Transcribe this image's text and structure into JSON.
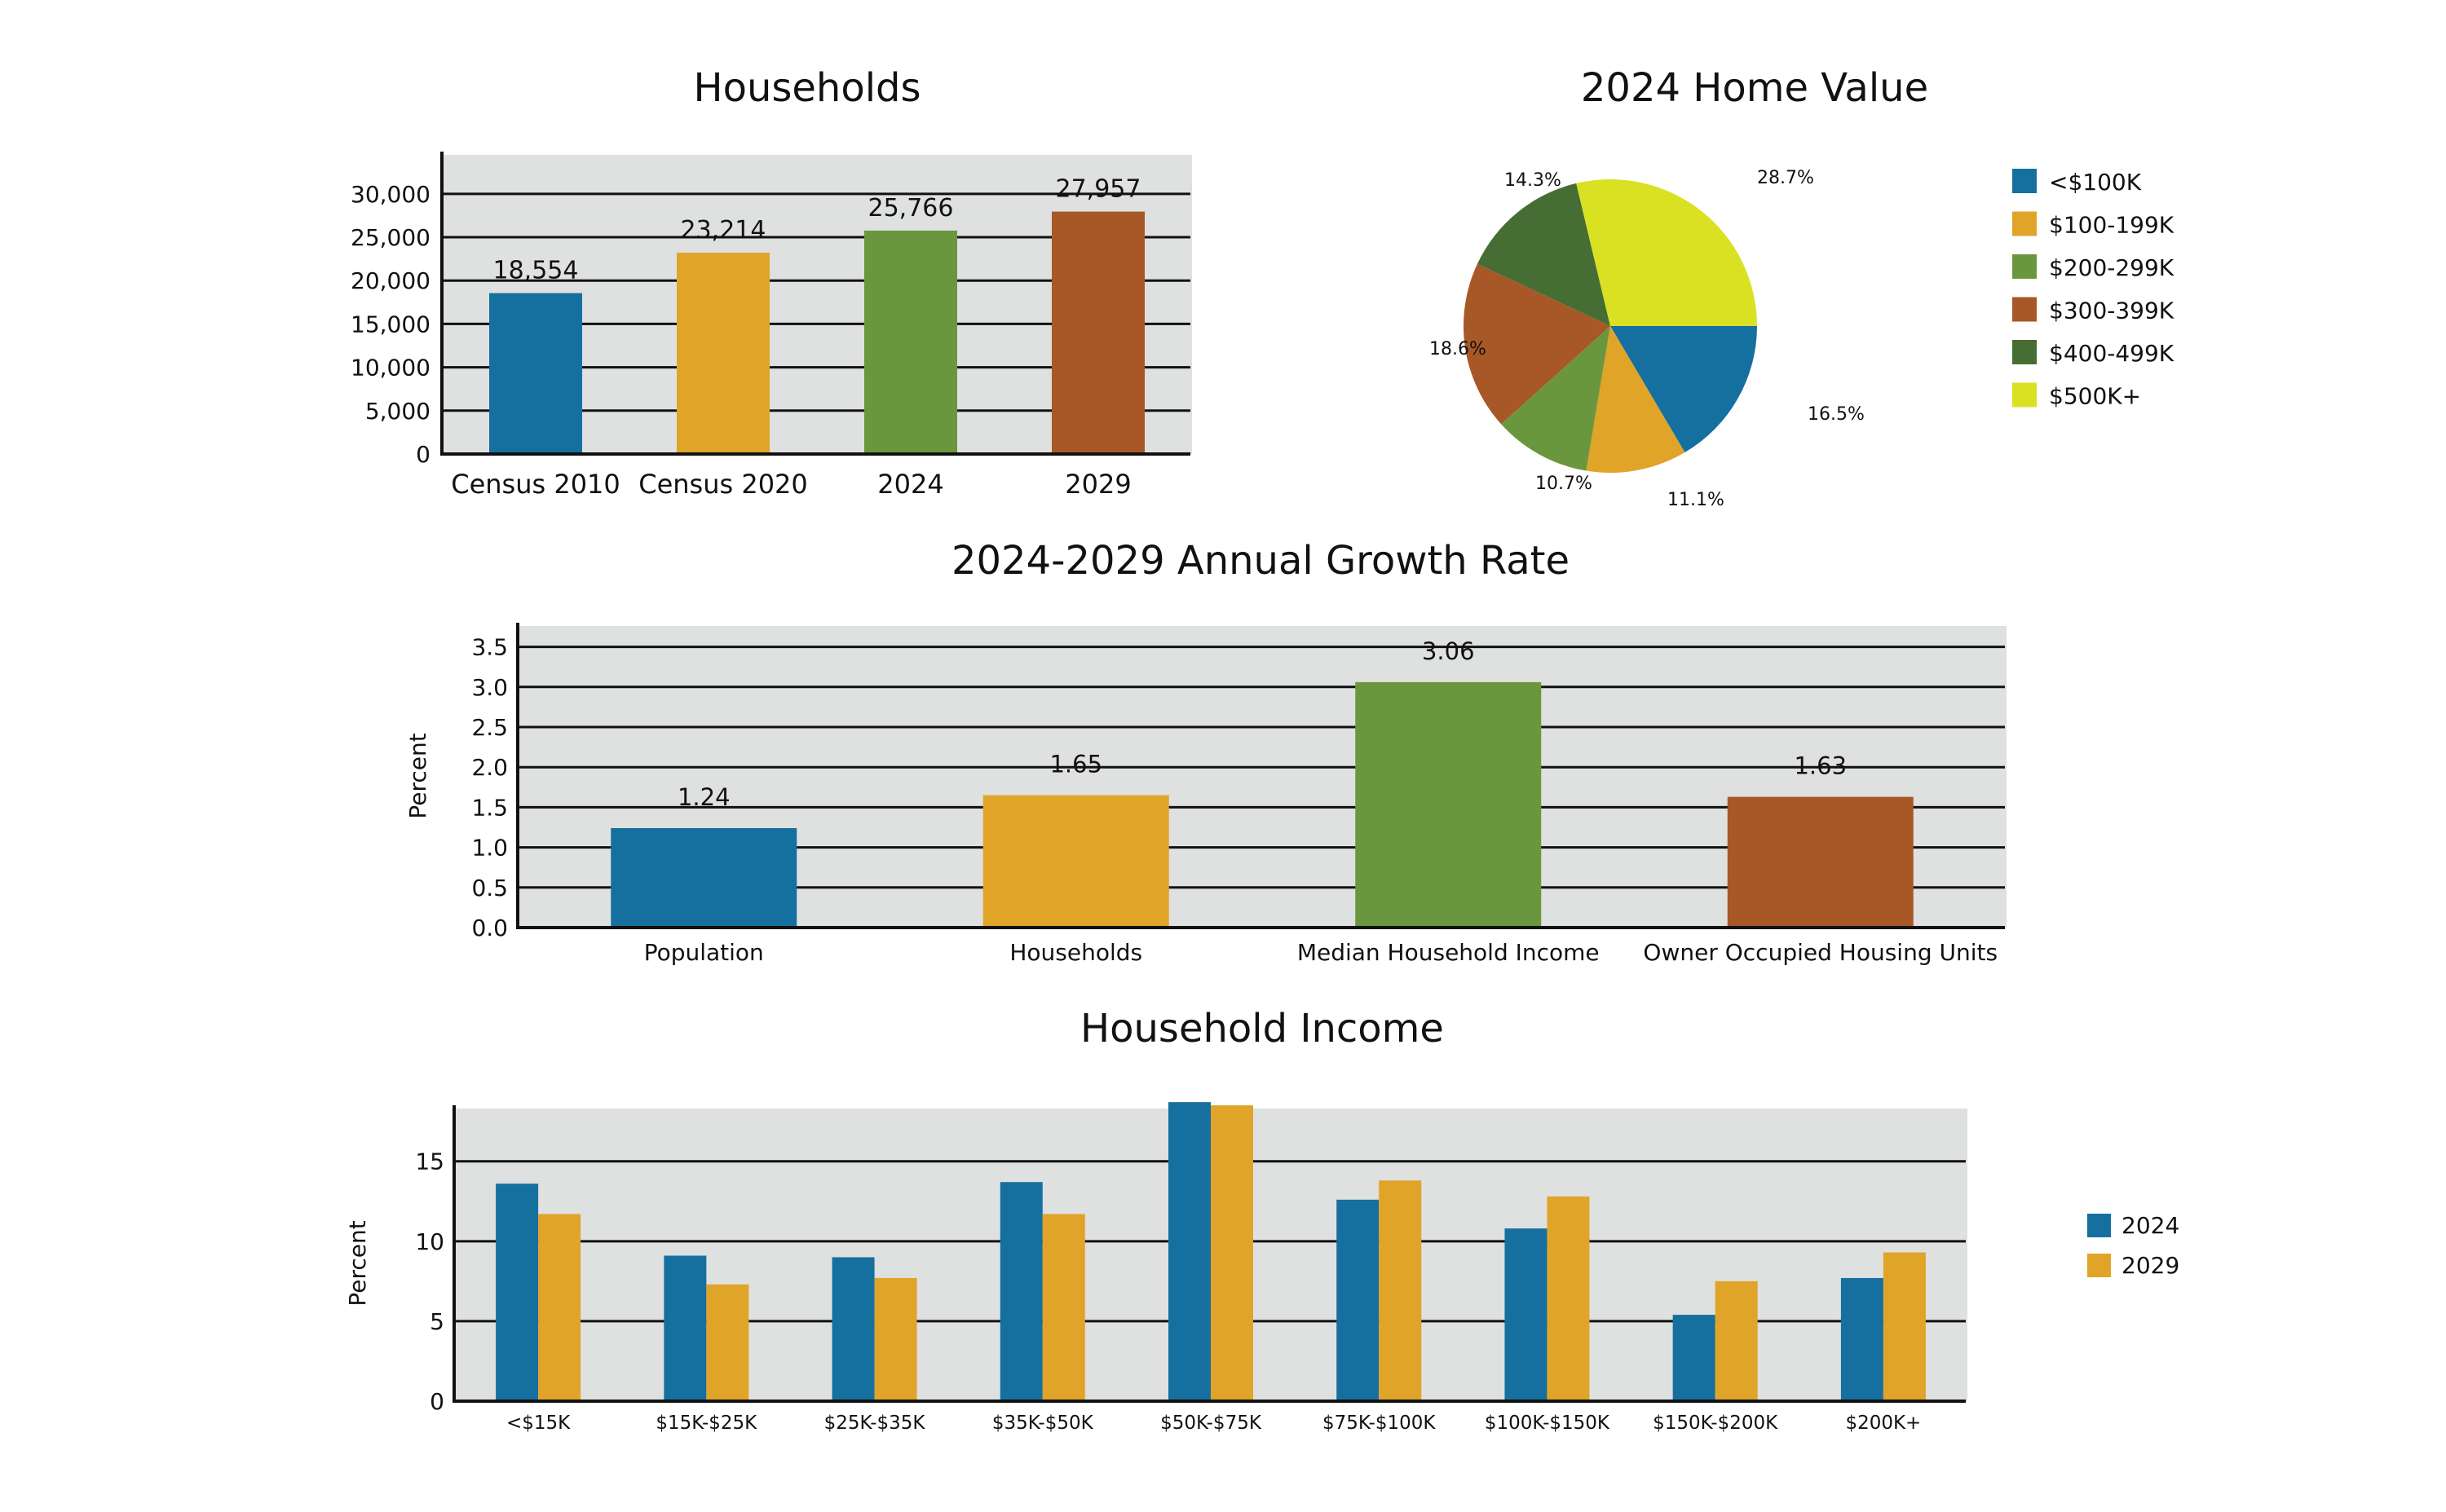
{
  "colors": {
    "plot_bg": "#dfe0e0",
    "grid": "#111111",
    "blue": "#1570a0",
    "orange": "#e0a428",
    "green": "#6a973e",
    "brown": "#a85727",
    "dark_green": "#466e34",
    "yellow": "#d9e122"
  },
  "chart_data": [
    {
      "id": "households",
      "type": "bar",
      "title": "Households",
      "xlabel": "",
      "ylabel": "",
      "categories": [
        "Census 2010",
        "Census 2020",
        "2024",
        "2029"
      ],
      "values": [
        18554,
        23214,
        25766,
        27957
      ],
      "value_labels": [
        "18,554",
        "23,214",
        "25,766",
        "27,957"
      ],
      "bar_colors": [
        "blue",
        "orange",
        "green",
        "brown"
      ],
      "ylim": [
        0,
        34500
      ],
      "yticks": [
        0,
        5000,
        10000,
        15000,
        20000,
        25000,
        30000
      ],
      "ytick_labels": [
        "0",
        "5,000",
        "10,000",
        "15,000",
        "20,000",
        "25,000",
        "30,000"
      ],
      "grid": true,
      "legend": "none"
    },
    {
      "id": "home-value",
      "type": "pie",
      "title": "2024 Home Value",
      "categories": [
        "<$100K",
        "$100-199K",
        "$200-299K",
        "$300-399K",
        "$400-499K",
        "$500K+"
      ],
      "values": [
        16.5,
        11.1,
        10.7,
        18.6,
        14.3,
        28.7
      ],
      "value_labels": [
        "16.5%",
        "11.1%",
        "10.7%",
        "18.6%",
        "14.3%",
        "28.7%"
      ],
      "slice_colors": [
        "blue",
        "orange",
        "green",
        "brown",
        "dark_green",
        "yellow"
      ],
      "legend": "right"
    },
    {
      "id": "growth-rate",
      "type": "bar",
      "title": "2024-2029 Annual Growth Rate",
      "xlabel": "",
      "ylabel": "Percent",
      "categories": [
        "Population",
        "Households",
        "Median Household Income",
        "Owner Occupied Housing Units"
      ],
      "values": [
        1.24,
        1.65,
        3.06,
        1.63
      ],
      "value_labels": [
        "1.24",
        "1.65",
        "3.06",
        "1.63"
      ],
      "bar_colors": [
        "blue",
        "orange",
        "green",
        "brown"
      ],
      "ylim": [
        0,
        3.76
      ],
      "yticks": [
        0,
        0.5,
        1.0,
        1.5,
        2.0,
        2.5,
        3.0,
        3.5
      ],
      "ytick_labels": [
        "0.0",
        "0.5",
        "1.0",
        "1.5",
        "2.0",
        "2.5",
        "3.0",
        "3.5"
      ],
      "grid": true,
      "legend": "none"
    },
    {
      "id": "household-income",
      "type": "bar",
      "title": "Household Income",
      "xlabel": "",
      "ylabel": "Percent",
      "categories": [
        "<$15K",
        "$15K-$25K",
        "$25K-$35K",
        "$35K-$50K",
        "$50K-$75K",
        "$75K-$100K",
        "$100K-$150K",
        "$150K-$200K",
        "$200K+"
      ],
      "series": [
        {
          "name": "2024",
          "color": "blue",
          "values": [
            13.6,
            9.1,
            9.0,
            13.7,
            18.7,
            12.6,
            10.8,
            5.4,
            7.7
          ]
        },
        {
          "name": "2029",
          "color": "orange",
          "values": [
            11.7,
            7.3,
            7.7,
            11.7,
            18.5,
            13.8,
            12.8,
            7.5,
            9.3
          ]
        }
      ],
      "ylim": [
        0,
        18.3
      ],
      "yticks": [
        0,
        5,
        10,
        15
      ],
      "ytick_labels": [
        "0",
        "5",
        "10",
        "15"
      ],
      "grid": true,
      "legend": "right"
    }
  ]
}
